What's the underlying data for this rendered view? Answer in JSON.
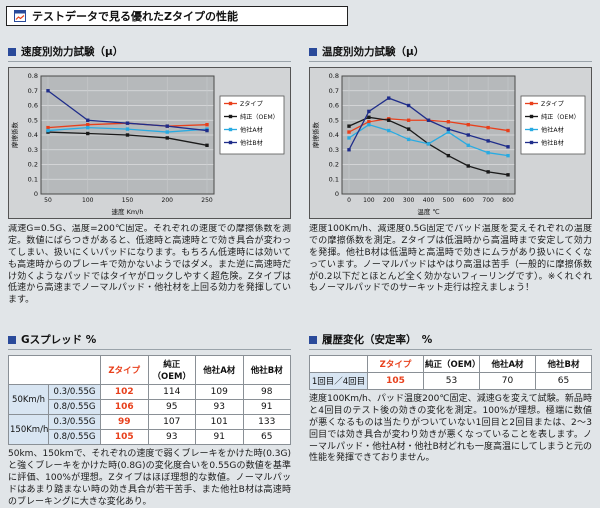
{
  "header": {
    "title": "テストデータで見る優れたZタイプの性能",
    "icon": "test-data-icon"
  },
  "sections": {
    "speed": {
      "title": "速度別効力試験（μ）",
      "caption": "減速G=0.5G、温度=200℃固定。それぞれの速度での摩擦係数を測定。数値にばらつきがあると、低速時と高速時とで効き具合が変わってしまい、扱いにくいパッドになります。もちろん低速時には効いても高速時からのブレーキで効かないようではダメ。また逆に高速時だけ効くようなパッドではタイヤがロックしやすく超危険。Zタイプは低速から高速までノーマルパッド・他社材を上回る効力を発揮しています。"
    },
    "temp": {
      "title": "温度別効力試験（μ）",
      "caption": "速度100Km/h、減速度0.5G固定でパッド温度を変えそれぞれの温度での摩擦係数を測定。Zタイプは低温時から高温時まで安定して効力を発揮。他社B材は低温時と高温時で効きにムラがあり扱いにくくなっています。ノーマルパッドはやはり高温は苦手（一般的に摩擦係数が0.2以下だとほとんど全く効かないフィーリングです）。※くれぐれもノーマルパッドでのサーキット走行は控えましょう！"
    },
    "gspread": {
      "title": "Gスプレッド %",
      "caption": "50km、150kmで、それぞれの速度で弱くブレーキをかけた時(0.3G)と強くブレーキをかけた時(0.8G)の変化度合いを0.55Gの数値を基準に評価、100%が理想。Zタイプはほぼ理想的な数値。ノーマルパッドはあまり踏まない時の効き具合が若干苦手、また他社B材は高速時のブレーキングに大きな変化あり。"
    },
    "history": {
      "title": "履歴変化（安定率）　%",
      "caption": "速度100Km/h、パッド温度200℃固定、減速Gを変えて試験。新品時と4回目のテスト後の効きの変化を測定。100%が理想。極端に数値が悪くなるものは当たりがついていない1回目と2回目または、2～3回目では効き具合が変わり効きが悪くなっていることを表します。ノーマルパッド・他社A材・他社B材どれも一度高温にしてしまうと元の性能を発揮できておりません。"
    }
  },
  "colors": {
    "z": "#e8401c",
    "oem": "#1a1a1a",
    "companyA": "#29abe2",
    "companyB": "#1f2d8a",
    "bullet": "#2a4a9a",
    "rowLabelBg": "#d8e5f2"
  },
  "chart_data": [
    {
      "type": "line",
      "title": "速度別効力試験（μ）",
      "x": [
        50,
        100,
        150,
        200,
        250
      ],
      "xlabel": "速度 Km/h",
      "ylabel": "摩擦係数",
      "ylim": [
        0,
        0.8
      ],
      "yticks": [
        0,
        0.1,
        0.2,
        0.3,
        0.4,
        0.5,
        0.6,
        0.7,
        0.8
      ],
      "grid": true,
      "legend_position": "right",
      "series": [
        {
          "name": "Zタイプ",
          "color": "#e8401c",
          "values": [
            0.45,
            0.47,
            0.48,
            0.46,
            0.47
          ]
        },
        {
          "name": "純正（OEM）",
          "color": "#1a1a1a",
          "values": [
            0.42,
            0.41,
            0.4,
            0.38,
            0.33
          ]
        },
        {
          "name": "他社A材",
          "color": "#29abe2",
          "values": [
            0.43,
            0.45,
            0.44,
            0.42,
            0.44
          ]
        },
        {
          "name": "他社B材",
          "color": "#1f2d8a",
          "values": [
            0.7,
            0.5,
            0.48,
            0.46,
            0.43
          ]
        }
      ]
    },
    {
      "type": "line",
      "title": "温度別効力試験（μ）",
      "x": [
        0,
        100,
        200,
        300,
        400,
        500,
        600,
        700,
        800
      ],
      "xlabel": "温度 ℃",
      "ylabel": "摩擦係数",
      "ylim": [
        0,
        0.8
      ],
      "yticks": [
        0,
        0.1,
        0.2,
        0.3,
        0.4,
        0.5,
        0.6,
        0.7,
        0.8
      ],
      "grid": true,
      "legend_position": "right",
      "series": [
        {
          "name": "Zタイプ",
          "color": "#e8401c",
          "values": [
            0.42,
            0.49,
            0.51,
            0.5,
            0.5,
            0.49,
            0.47,
            0.45,
            0.43
          ]
        },
        {
          "name": "純正（OEM）",
          "color": "#1a1a1a",
          "values": [
            0.46,
            0.52,
            0.5,
            0.44,
            0.34,
            0.26,
            0.19,
            0.15,
            0.13
          ]
        },
        {
          "name": "他社A材",
          "color": "#29abe2",
          "values": [
            0.38,
            0.47,
            0.43,
            0.37,
            0.34,
            0.42,
            0.33,
            0.28,
            0.26
          ]
        },
        {
          "name": "他社B材",
          "color": "#1f2d8a",
          "values": [
            0.3,
            0.56,
            0.65,
            0.6,
            0.5,
            0.44,
            0.4,
            0.36,
            0.32
          ]
        }
      ]
    },
    {
      "type": "table",
      "title": "Gスプレッド %",
      "columns": [
        "Zタイプ",
        "純正（OEM）",
        "他社A材",
        "他社B材"
      ],
      "z_column_index": 0,
      "row_groups": [
        {
          "group": "50Km/h",
          "rows": [
            {
              "label": "0.3/0.55G",
              "values": [
                102,
                114,
                109,
                98
              ]
            },
            {
              "label": "0.8/0.55G",
              "values": [
                106,
                95,
                93,
                91
              ]
            }
          ]
        },
        {
          "group": "150Km/h",
          "rows": [
            {
              "label": "0.3/0.55G",
              "values": [
                99,
                107,
                101,
                133
              ]
            },
            {
              "label": "0.8/0.55G",
              "values": [
                105,
                93,
                91,
                65
              ]
            }
          ]
        }
      ]
    },
    {
      "type": "table",
      "title": "履歴変化（安定率） %",
      "columns": [
        "Zタイプ",
        "純正（OEM）",
        "他社A材",
        "他社B材"
      ],
      "z_column_index": 0,
      "row_groups": [
        {
          "rows": [
            {
              "label": "1回目／4回目",
              "values": [
                105,
                53,
                70,
                65
              ]
            }
          ]
        }
      ]
    }
  ]
}
